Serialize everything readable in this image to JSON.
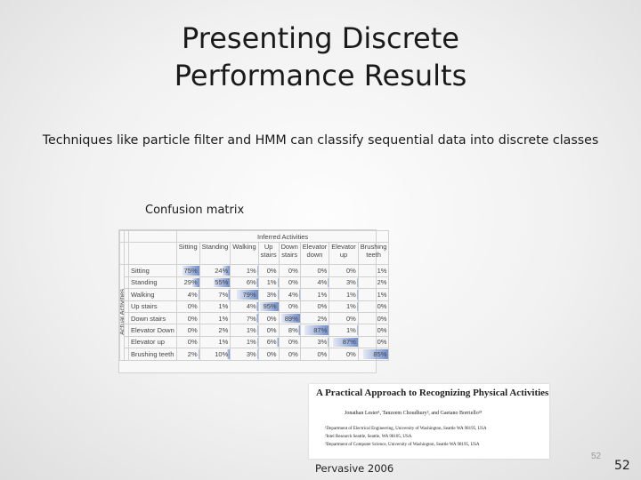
{
  "slide": {
    "title_line1": "Presenting Discrete",
    "title_line2": "Performance Results",
    "subtitle": "Techniques like particle filter and HMM can classify sequential data into discrete classes",
    "caption": "Confusion matrix",
    "venue": "Pervasive 2006",
    "page_number_small": "52",
    "page_number": "52"
  },
  "matrix": {
    "group_col": "Inferred Activities",
    "group_row": "Actual Activities",
    "columns": [
      "Sitting",
      "Standing",
      "Walking",
      "Up stairs",
      "Down stairs",
      "Elevator down",
      "Elevator up",
      "Brushing teeth"
    ],
    "rows": [
      {
        "label": "Sitting",
        "values": [
          "75%",
          "24%",
          "1%",
          "0%",
          "0%",
          "0%",
          "0%",
          "1%"
        ],
        "fractions": [
          0.75,
          0.24,
          0.01,
          0,
          0,
          0,
          0,
          0.01
        ]
      },
      {
        "label": "Standing",
        "values": [
          "29%",
          "55%",
          "6%",
          "1%",
          "0%",
          "4%",
          "3%",
          "2%"
        ],
        "fractions": [
          0.29,
          0.55,
          0.06,
          0.01,
          0,
          0.04,
          0.03,
          0.02
        ]
      },
      {
        "label": "Walking",
        "values": [
          "4%",
          "7%",
          "79%",
          "3%",
          "4%",
          "1%",
          "1%",
          "1%"
        ],
        "fractions": [
          0.04,
          0.07,
          0.79,
          0.03,
          0.04,
          0.01,
          0.01,
          0.01
        ]
      },
      {
        "label": "Up stairs",
        "values": [
          "0%",
          "1%",
          "4%",
          "95%",
          "0%",
          "0%",
          "1%",
          "0%"
        ],
        "fractions": [
          0,
          0.01,
          0.04,
          0.95,
          0,
          0,
          0.01,
          0
        ]
      },
      {
        "label": "Down stairs",
        "values": [
          "0%",
          "1%",
          "7%",
          "0%",
          "89%",
          "2%",
          "0%",
          "0%"
        ],
        "fractions": [
          0,
          0.01,
          0.07,
          0,
          0.89,
          0.02,
          0,
          0
        ]
      },
      {
        "label": "Elevator Down",
        "values": [
          "0%",
          "2%",
          "1%",
          "0%",
          "8%",
          "87%",
          "1%",
          "0%"
        ],
        "fractions": [
          0,
          0.02,
          0.01,
          0,
          0.08,
          0.87,
          0.01,
          0
        ]
      },
      {
        "label": "Elevator up",
        "values": [
          "0%",
          "1%",
          "1%",
          "6%",
          "0%",
          "3%",
          "87%",
          "0%"
        ],
        "fractions": [
          0,
          0.01,
          0.01,
          0.06,
          0,
          0.03,
          0.87,
          0
        ]
      },
      {
        "label": "Brushing teeth",
        "values": [
          "2%",
          "10%",
          "3%",
          "0%",
          "0%",
          "0%",
          "0%",
          "85%"
        ],
        "fractions": [
          0.02,
          0.1,
          0.03,
          0,
          0,
          0,
          0,
          0.85
        ]
      }
    ]
  },
  "paper": {
    "title": "A Practical Approach to Recognizing Physical Activities",
    "authors": "Jonathan Lester¹, Tanzeem Choudhury², and Gaetano Borriello²³",
    "affiliations": [
      "¹Department of Electrical Engineering, University of Washington, Seattle WA 98195, USA",
      "²Intel Research Seattle, Seattle, WA 98105, USA",
      "³Department of Computer Science, University of Washington, Seattle WA 98195, USA"
    ]
  }
}
